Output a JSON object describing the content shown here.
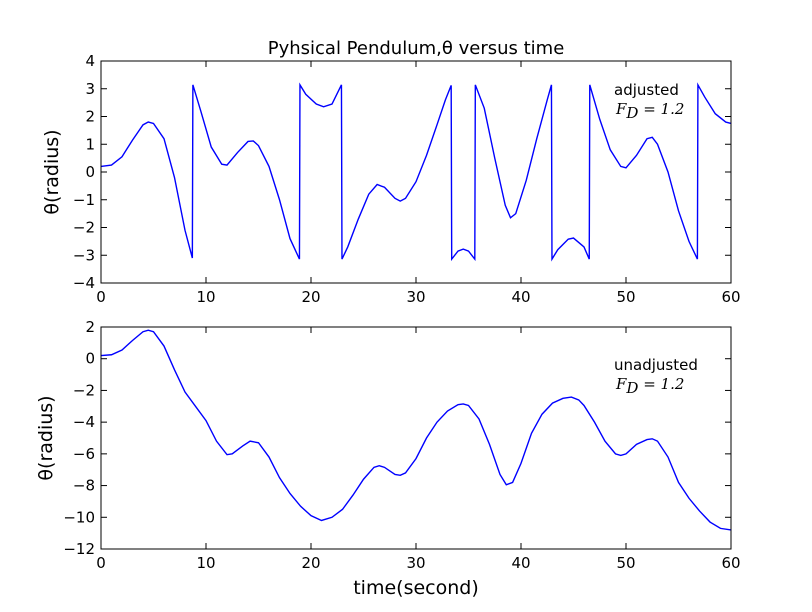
{
  "chart_data": [
    {
      "type": "line",
      "title": "Pyhsical Pendulum,θ versus time",
      "xlabel": "",
      "ylabel": "θ(radius)",
      "xlim": [
        0,
        60
      ],
      "ylim": [
        -4,
        4
      ],
      "xticks": [
        "0",
        "10",
        "20",
        "30",
        "40",
        "50",
        "60"
      ],
      "yticks": [
        "4",
        "3",
        "2",
        "1",
        "0",
        "−1",
        "−2",
        "−3",
        "−4"
      ],
      "grid": false,
      "annotation": {
        "label": "adjusted",
        "formula_lhs": "F",
        "formula_sub": "D",
        "formula_rhs": " = 1.2"
      },
      "series": [
        {
          "color": "#0000ff",
          "points": [
            [
              0,
              0.2
            ],
            [
              1,
              0.25
            ],
            [
              2,
              0.55
            ],
            [
              3,
              1.15
            ],
            [
              4,
              1.7
            ],
            [
              4.5,
              1.8
            ],
            [
              5,
              1.75
            ],
            [
              6,
              1.2
            ],
            [
              7,
              -0.2
            ],
            [
              8,
              -2.1
            ],
            [
              8.7,
              -3.1
            ],
            [
              8.75,
              3.14
            ],
            [
              9.5,
              2.2
            ],
            [
              10.5,
              0.9
            ],
            [
              11.5,
              0.28
            ],
            [
              12,
              0.25
            ],
            [
              13,
              0.7
            ],
            [
              14,
              1.1
            ],
            [
              14.5,
              1.12
            ],
            [
              15,
              0.95
            ],
            [
              16,
              0.2
            ],
            [
              17,
              -1.0
            ],
            [
              18,
              -2.4
            ],
            [
              18.9,
              -3.14
            ],
            [
              18.95,
              3.14
            ],
            [
              19.5,
              2.8
            ],
            [
              20.5,
              2.45
            ],
            [
              21.2,
              2.35
            ],
            [
              22,
              2.45
            ],
            [
              22.9,
              3.14
            ],
            [
              22.95,
              -3.14
            ],
            [
              23.5,
              -2.7
            ],
            [
              24.5,
              -1.7
            ],
            [
              25.5,
              -0.8
            ],
            [
              26.3,
              -0.45
            ],
            [
              27,
              -0.55
            ],
            [
              28,
              -0.95
            ],
            [
              28.5,
              -1.05
            ],
            [
              29,
              -0.95
            ],
            [
              30,
              -0.35
            ],
            [
              31,
              0.6
            ],
            [
              32,
              1.7
            ],
            [
              32.8,
              2.6
            ],
            [
              33.35,
              3.12
            ],
            [
              33.4,
              -3.14
            ],
            [
              34,
              -2.85
            ],
            [
              34.5,
              -2.78
            ],
            [
              35,
              -2.85
            ],
            [
              35.6,
              -3.14
            ],
            [
              35.65,
              3.14
            ],
            [
              36.5,
              2.3
            ],
            [
              37.5,
              0.5
            ],
            [
              38.5,
              -1.2
            ],
            [
              39,
              -1.65
            ],
            [
              39.5,
              -1.5
            ],
            [
              40.5,
              -0.3
            ],
            [
              41.5,
              1.2
            ],
            [
              42.5,
              2.6
            ],
            [
              42.9,
              3.14
            ],
            [
              42.95,
              -3.14
            ],
            [
              43.5,
              -2.8
            ],
            [
              44.5,
              -2.42
            ],
            [
              45,
              -2.38
            ],
            [
              46,
              -2.7
            ],
            [
              46.5,
              -3.14
            ],
            [
              46.55,
              3.14
            ],
            [
              47.5,
              1.9
            ],
            [
              48.5,
              0.8
            ],
            [
              49.5,
              0.2
            ],
            [
              50,
              0.15
            ],
            [
              51,
              0.6
            ],
            [
              52,
              1.2
            ],
            [
              52.5,
              1.25
            ],
            [
              53,
              1.0
            ],
            [
              54,
              0.0
            ],
            [
              55,
              -1.4
            ],
            [
              56,
              -2.5
            ],
            [
              56.8,
              -3.14
            ],
            [
              56.85,
              3.14
            ],
            [
              57.5,
              2.7
            ],
            [
              58.5,
              2.1
            ],
            [
              59.5,
              1.8
            ],
            [
              60,
              1.75
            ]
          ]
        }
      ]
    },
    {
      "type": "line",
      "title": "",
      "xlabel": "time(second)",
      "ylabel": "θ(radius)",
      "xlim": [
        0,
        60
      ],
      "ylim": [
        -12,
        2
      ],
      "xticks": [
        "0",
        "10",
        "20",
        "30",
        "40",
        "50",
        "60"
      ],
      "yticks": [
        "2",
        "0",
        "−2",
        "−4",
        "−6",
        "−8",
        "−10",
        "−12"
      ],
      "grid": false,
      "annotation": {
        "label": "unadjusted",
        "formula_lhs": "F",
        "formula_sub": "D",
        "formula_rhs": " = 1.2"
      },
      "series": [
        {
          "color": "#0000ff",
          "points": [
            [
              0,
              0.2
            ],
            [
              1,
              0.25
            ],
            [
              2,
              0.55
            ],
            [
              3,
              1.15
            ],
            [
              4,
              1.7
            ],
            [
              4.5,
              1.8
            ],
            [
              5,
              1.7
            ],
            [
              6,
              0.8
            ],
            [
              7,
              -0.7
            ],
            [
              8,
              -2.1
            ],
            [
              9,
              -3.0
            ],
            [
              10,
              -3.9
            ],
            [
              11,
              -5.2
            ],
            [
              12,
              -6.05
            ],
            [
              12.5,
              -6.0
            ],
            [
              13.5,
              -5.5
            ],
            [
              14.2,
              -5.2
            ],
            [
              15,
              -5.3
            ],
            [
              16,
              -6.2
            ],
            [
              17,
              -7.5
            ],
            [
              18,
              -8.5
            ],
            [
              19,
              -9.3
            ],
            [
              20,
              -9.9
            ],
            [
              21,
              -10.2
            ],
            [
              22,
              -10.0
            ],
            [
              23,
              -9.5
            ],
            [
              24,
              -8.6
            ],
            [
              25,
              -7.6
            ],
            [
              26,
              -6.85
            ],
            [
              26.5,
              -6.75
            ],
            [
              27,
              -6.85
            ],
            [
              28,
              -7.3
            ],
            [
              28.5,
              -7.35
            ],
            [
              29,
              -7.2
            ],
            [
              30,
              -6.3
            ],
            [
              31,
              -5.0
            ],
            [
              32,
              -4.0
            ],
            [
              33,
              -3.3
            ],
            [
              34,
              -2.9
            ],
            [
              34.5,
              -2.85
            ],
            [
              35,
              -2.95
            ],
            [
              36,
              -3.8
            ],
            [
              37,
              -5.4
            ],
            [
              38,
              -7.3
            ],
            [
              38.6,
              -7.95
            ],
            [
              39.2,
              -7.8
            ],
            [
              40,
              -6.6
            ],
            [
              41,
              -4.7
            ],
            [
              42,
              -3.5
            ],
            [
              43,
              -2.8
            ],
            [
              44,
              -2.5
            ],
            [
              44.8,
              -2.42
            ],
            [
              45.5,
              -2.6
            ],
            [
              46,
              -2.95
            ],
            [
              47,
              -4.0
            ],
            [
              48,
              -5.2
            ],
            [
              49,
              -6.0
            ],
            [
              49.5,
              -6.1
            ],
            [
              50,
              -6.0
            ],
            [
              51,
              -5.4
            ],
            [
              52,
              -5.1
            ],
            [
              52.5,
              -5.05
            ],
            [
              53,
              -5.2
            ],
            [
              54,
              -6.2
            ],
            [
              55,
              -7.8
            ],
            [
              56,
              -8.8
            ],
            [
              57,
              -9.6
            ],
            [
              58,
              -10.3
            ],
            [
              59,
              -10.7
            ],
            [
              60,
              -10.8
            ]
          ]
        }
      ]
    }
  ]
}
